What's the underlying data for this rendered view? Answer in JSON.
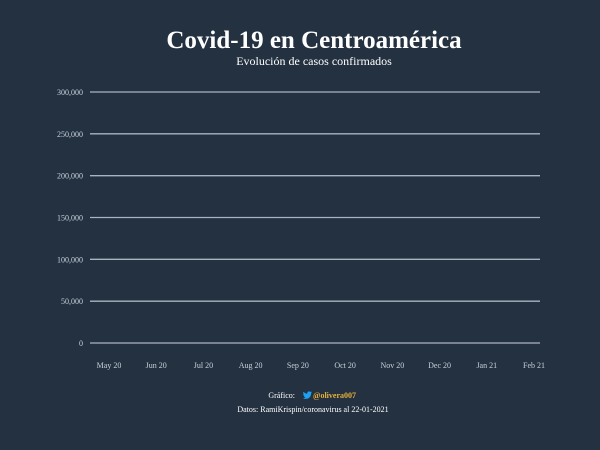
{
  "chart_data": {
    "type": "line",
    "title": "Covid-19 en Centroamérica",
    "subtitle": "Evolución de casos confirmados",
    "xlabel": "",
    "ylabel": "",
    "x_ticks": [
      "May 20",
      "Jun 20",
      "Jul 20",
      "Aug 20",
      "Sep 20",
      "Oct 20",
      "Nov 20",
      "Dec 20",
      "Jan 21",
      "Feb 21"
    ],
    "y_ticks": [
      "0",
      "50,000",
      "100,000",
      "150,000",
      "200,000",
      "250,000",
      "300,000"
    ],
    "y_tick_values": [
      0,
      50000,
      100000,
      150000,
      200000,
      250000,
      300000
    ],
    "ylim": [
      0,
      300000
    ],
    "grid": true,
    "series": []
  },
  "caption": {
    "grafico_label": "Gráfico:",
    "handle": "@olivera007",
    "datos": "Datos: RamiKrispin/coronavirus al 22-01-2021"
  },
  "colors": {
    "background": "#233140",
    "text": "#ffffff",
    "tick_text": "#c9d2dc",
    "grid": "#aab4c0",
    "handle": "#e8b23a",
    "twitter": "#1da1f2"
  },
  "icons": {
    "twitter": "twitter-bird-icon"
  }
}
